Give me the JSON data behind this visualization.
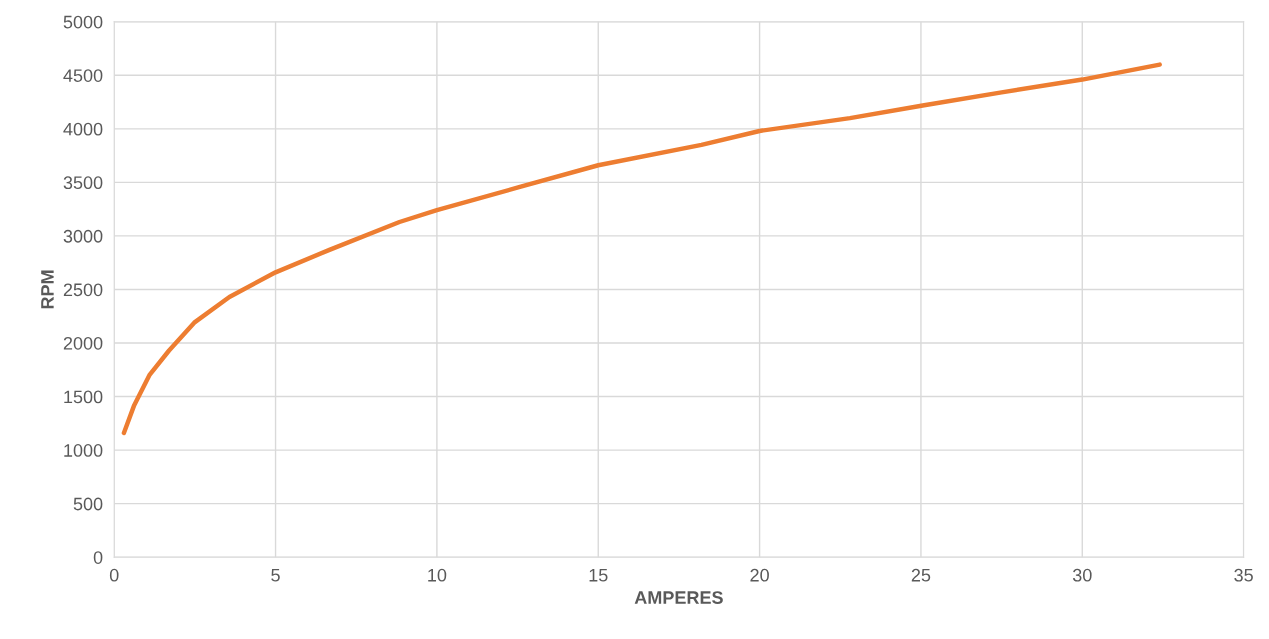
{
  "chart_data": {
    "type": "line",
    "xlabel": "AMPERES",
    "ylabel": "RPM",
    "x": [
      0.3,
      0.62,
      1.09,
      1.7,
      2.48,
      3.57,
      5,
      6.67,
      8.84,
      10,
      12.6,
      15,
      18.2,
      20,
      22.8,
      25.1,
      27.5,
      30,
      32.4
    ],
    "series": [
      {
        "color": "#ed7d31",
        "values": [
          1160,
          1420,
          1700,
          1930,
          2190,
          2430,
          2660,
          2870,
          3130,
          3240,
          3460,
          3660,
          3850,
          3980,
          4100,
          4220,
          4340,
          4460,
          4600
        ]
      }
    ],
    "xlim": [
      0,
      35
    ],
    "xticks": [
      0,
      5,
      10,
      15,
      20,
      25,
      30,
      35
    ],
    "ylim": [
      0,
      5000
    ],
    "yticks": [
      0,
      500,
      1000,
      1500,
      2000,
      2500,
      3000,
      3500,
      4000,
      4500,
      5000
    ],
    "grid": true,
    "legend": false,
    "marker": "none",
    "line_style": "solid"
  }
}
